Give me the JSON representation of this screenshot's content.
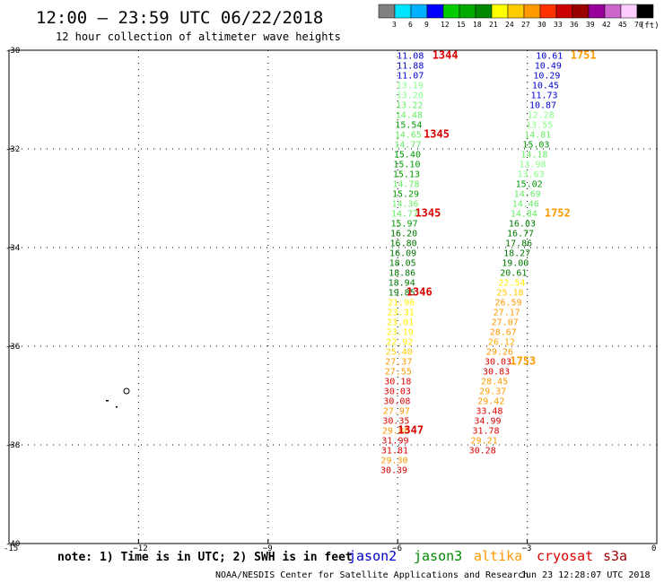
{
  "chart_data": {
    "type": "scatter",
    "title": "12:00 – 23:59 UTC 06/22/2018",
    "subtitle": "12 hour collection of altimeter wave heights",
    "xlim": [
      -15,
      0
    ],
    "ylim": [
      -40,
      -30
    ],
    "x_ticks": [
      -15,
      -12,
      -9,
      -6,
      -3,
      0
    ],
    "x_tick_labels": [
      "-15",
      "−12",
      "−9",
      "−6",
      "−3",
      "0"
    ],
    "y_ticks": [
      -30,
      -32,
      -34,
      -36,
      -38,
      -40
    ],
    "y_tick_labels": [
      "-30",
      "-32",
      "-34",
      "-36",
      "-38",
      "-40"
    ],
    "grid": true,
    "colorbar": {
      "unit": "(ft)",
      "labels": [
        "3",
        "6",
        "9",
        "12",
        "15",
        "18",
        "21",
        "24",
        "27",
        "30",
        "33",
        "36",
        "39",
        "42",
        "45",
        "70"
      ],
      "colors": [
        "#808080",
        "#00e5ff",
        "#00b0ff",
        "#0000ff",
        "#00cc00",
        "#00aa00",
        "#008800",
        "#ffff00",
        "#ffcc00",
        "#ff9900",
        "#ff3300",
        "#cc0000",
        "#990000",
        "#990099",
        "#cc66cc",
        "#ffccff",
        "#000000"
      ]
    },
    "series": [
      {
        "name": "track-1344",
        "points": [
          {
            "x": -6.02,
            "y": -30.1,
            "v": "11.08",
            "c": "#0000cc"
          },
          {
            "x": -6.02,
            "y": -30.3,
            "v": "11.88",
            "c": "#0000cc"
          },
          {
            "x": -6.02,
            "y": -30.5,
            "v": "11.07",
            "c": "#0000cc"
          },
          {
            "x": -6.03,
            "y": -30.7,
            "v": "13.19",
            "c": "#88ff88"
          },
          {
            "x": -6.03,
            "y": -30.9,
            "v": "13.20",
            "c": "#88ff88"
          },
          {
            "x": -6.04,
            "y": -31.1,
            "v": "13.22",
            "c": "#66ee66"
          },
          {
            "x": -6.05,
            "y": -31.3,
            "v": "14.48",
            "c": "#66ee66"
          },
          {
            "x": -6.06,
            "y": -31.5,
            "v": "15.54",
            "c": "#009900"
          },
          {
            "x": -6.07,
            "y": -31.7,
            "v": "14.65",
            "c": "#66ee66"
          },
          {
            "x": -6.08,
            "y": -31.9,
            "v": "14.77",
            "c": "#66ee66"
          },
          {
            "x": -6.09,
            "y": -32.1,
            "v": "15.40",
            "c": "#009900"
          },
          {
            "x": -6.1,
            "y": -32.3,
            "v": "15.10",
            "c": "#009900"
          },
          {
            "x": -6.11,
            "y": -32.5,
            "v": "15.13",
            "c": "#009900"
          },
          {
            "x": -6.12,
            "y": -32.7,
            "v": "14.78",
            "c": "#66ee66"
          },
          {
            "x": -6.13,
            "y": -32.9,
            "v": "15.29",
            "c": "#009900"
          },
          {
            "x": -6.14,
            "y": -33.1,
            "v": "14.36",
            "c": "#66ee66"
          },
          {
            "x": -6.15,
            "y": -33.3,
            "v": "14.77",
            "c": "#66ee66"
          },
          {
            "x": -6.16,
            "y": -33.5,
            "v": "15.97",
            "c": "#009900"
          },
          {
            "x": -6.17,
            "y": -33.7,
            "v": "16.20",
            "c": "#007700"
          },
          {
            "x": -6.18,
            "y": -33.9,
            "v": "16.80",
            "c": "#007700"
          },
          {
            "x": -6.19,
            "y": -34.1,
            "v": "16.09",
            "c": "#007700"
          },
          {
            "x": -6.2,
            "y": -34.3,
            "v": "18.05",
            "c": "#007700"
          },
          {
            "x": -6.21,
            "y": -34.5,
            "v": "18.86",
            "c": "#007700"
          },
          {
            "x": -6.22,
            "y": -34.7,
            "v": "18.94",
            "c": "#007700"
          },
          {
            "x": -6.22,
            "y": -34.9,
            "v": "19.85",
            "c": "#007700"
          },
          {
            "x": -6.23,
            "y": -35.1,
            "v": "21.96",
            "c": "#ffee00"
          },
          {
            "x": -6.24,
            "y": -35.3,
            "v": "23.31",
            "c": "#ffee00"
          },
          {
            "x": -6.25,
            "y": -35.5,
            "v": "23.01",
            "c": "#ffee00"
          },
          {
            "x": -6.26,
            "y": -35.7,
            "v": "23.19",
            "c": "#ffee00"
          },
          {
            "x": -6.27,
            "y": -35.9,
            "v": "22.92",
            "c": "#ffee00"
          },
          {
            "x": -6.28,
            "y": -36.1,
            "v": "25.40",
            "c": "#ffcc00"
          },
          {
            "x": -6.29,
            "y": -36.3,
            "v": "27.37",
            "c": "#ff9900"
          },
          {
            "x": -6.3,
            "y": -36.5,
            "v": "27.55",
            "c": "#ff9900"
          },
          {
            "x": -6.31,
            "y": -36.7,
            "v": "30.18",
            "c": "#dd0000"
          },
          {
            "x": -6.32,
            "y": -36.9,
            "v": "30.03",
            "c": "#dd0000"
          },
          {
            "x": -6.33,
            "y": -37.1,
            "v": "30.08",
            "c": "#dd0000"
          },
          {
            "x": -6.34,
            "y": -37.3,
            "v": "27.97",
            "c": "#ff9900"
          },
          {
            "x": -6.35,
            "y": -37.5,
            "v": "30.35",
            "c": "#dd0000"
          },
          {
            "x": -6.36,
            "y": -37.7,
            "v": "29.88",
            "c": "#ff9900"
          },
          {
            "x": -6.37,
            "y": -37.9,
            "v": "31.99",
            "c": "#dd0000"
          },
          {
            "x": -6.38,
            "y": -38.1,
            "v": "31.81",
            "c": "#dd0000"
          },
          {
            "x": -6.39,
            "y": -38.3,
            "v": "29.30",
            "c": "#ff9900"
          },
          {
            "x": -6.4,
            "y": -38.5,
            "v": "30.39",
            "c": "#dd0000"
          }
        ]
      },
      {
        "name": "track-1751",
        "points": [
          {
            "x": -2.8,
            "y": -30.1,
            "v": "10.61",
            "c": "#0000cc"
          },
          {
            "x": -2.83,
            "y": -30.3,
            "v": "10.49",
            "c": "#0000cc"
          },
          {
            "x": -2.86,
            "y": -30.5,
            "v": "10.29",
            "c": "#0000cc"
          },
          {
            "x": -2.89,
            "y": -30.7,
            "v": "10.45",
            "c": "#0000cc"
          },
          {
            "x": -2.92,
            "y": -30.9,
            "v": "11.73",
            "c": "#0000cc"
          },
          {
            "x": -2.95,
            "y": -31.1,
            "v": "10.87",
            "c": "#0000cc"
          },
          {
            "x": -3.0,
            "y": -31.3,
            "v": "12.28",
            "c": "#88ff88"
          },
          {
            "x": -3.03,
            "y": -31.5,
            "v": "13.55",
            "c": "#88ff88"
          },
          {
            "x": -3.07,
            "y": -31.7,
            "v": "14.81",
            "c": "#66ee66"
          },
          {
            "x": -3.11,
            "y": -31.9,
            "v": "15.03",
            "c": "#009900"
          },
          {
            "x": -3.15,
            "y": -32.1,
            "v": "14.18",
            "c": "#66ee66"
          },
          {
            "x": -3.19,
            "y": -32.3,
            "v": "13.98",
            "c": "#88ff88"
          },
          {
            "x": -3.23,
            "y": -32.5,
            "v": "13.63",
            "c": "#88ff88"
          },
          {
            "x": -3.27,
            "y": -32.7,
            "v": "15.02",
            "c": "#009900"
          },
          {
            "x": -3.31,
            "y": -32.9,
            "v": "14.69",
            "c": "#66ee66"
          },
          {
            "x": -3.35,
            "y": -33.1,
            "v": "14.46",
            "c": "#66ee66"
          },
          {
            "x": -3.39,
            "y": -33.3,
            "v": "14.84",
            "c": "#66ee66"
          },
          {
            "x": -3.43,
            "y": -33.5,
            "v": "16.03",
            "c": "#007700"
          },
          {
            "x": -3.47,
            "y": -33.7,
            "v": "16.77",
            "c": "#007700"
          },
          {
            "x": -3.51,
            "y": -33.9,
            "v": "17.86",
            "c": "#007700"
          },
          {
            "x": -3.55,
            "y": -34.1,
            "v": "18.27",
            "c": "#007700"
          },
          {
            "x": -3.59,
            "y": -34.3,
            "v": "19.00",
            "c": "#007700"
          },
          {
            "x": -3.63,
            "y": -34.5,
            "v": "20.61",
            "c": "#007700"
          },
          {
            "x": -3.67,
            "y": -34.7,
            "v": "22.54",
            "c": "#ffee00"
          },
          {
            "x": -3.71,
            "y": -34.9,
            "v": "25.18",
            "c": "#ffcc00"
          },
          {
            "x": -3.75,
            "y": -35.1,
            "v": "26.59",
            "c": "#ff9900"
          },
          {
            "x": -3.79,
            "y": -35.3,
            "v": "27.17",
            "c": "#ff9900"
          },
          {
            "x": -3.83,
            "y": -35.5,
            "v": "27.07",
            "c": "#ff9900"
          },
          {
            "x": -3.87,
            "y": -35.7,
            "v": "28.67",
            "c": "#ff9900"
          },
          {
            "x": -3.91,
            "y": -35.9,
            "v": "26.12",
            "c": "#ffaa00"
          },
          {
            "x": -3.95,
            "y": -36.1,
            "v": "29.26",
            "c": "#ff9900"
          },
          {
            "x": -3.99,
            "y": -36.3,
            "v": "30.03",
            "c": "#dd0000"
          },
          {
            "x": -4.03,
            "y": -36.5,
            "v": "30.83",
            "c": "#dd0000"
          },
          {
            "x": -4.07,
            "y": -36.7,
            "v": "28.45",
            "c": "#ff9900"
          },
          {
            "x": -4.11,
            "y": -36.9,
            "v": "29.37",
            "c": "#ff9900"
          },
          {
            "x": -4.15,
            "y": -37.1,
            "v": "29.42",
            "c": "#ff9900"
          },
          {
            "x": -4.19,
            "y": -37.3,
            "v": "33.48",
            "c": "#dd0000"
          },
          {
            "x": -4.23,
            "y": -37.5,
            "v": "34.99",
            "c": "#dd0000"
          },
          {
            "x": -4.27,
            "y": -37.7,
            "v": "31.78",
            "c": "#dd0000"
          },
          {
            "x": -4.31,
            "y": -37.9,
            "v": "29.21",
            "c": "#ff9900"
          },
          {
            "x": -4.35,
            "y": -38.1,
            "v": "30.28",
            "c": "#dd0000"
          }
        ]
      }
    ],
    "time_labels": [
      {
        "text": "1344",
        "x": -5.2,
        "y": -30.1,
        "c": "#dd0000"
      },
      {
        "text": "1345",
        "x": -5.4,
        "y": -31.7,
        "c": "#dd0000"
      },
      {
        "text": "1345",
        "x": -5.6,
        "y": -33.3,
        "c": "#dd0000"
      },
      {
        "text": "1346",
        "x": -5.8,
        "y": -34.9,
        "c": "#dd0000"
      },
      {
        "text": "1347",
        "x": -6.0,
        "y": -37.7,
        "c": "#dd0000"
      },
      {
        "text": "1751",
        "x": -2.0,
        "y": -30.1,
        "c": "#ff9900"
      },
      {
        "text": "1752",
        "x": -2.6,
        "y": -33.3,
        "c": "#ff9900"
      },
      {
        "text": "1753",
        "x": -3.4,
        "y": -36.3,
        "c": "#ff9900"
      }
    ],
    "legend": [
      {
        "name": "jason2",
        "color": "#0000cc"
      },
      {
        "name": "jason3",
        "color": "#008800"
      },
      {
        "name": "altika",
        "color": "#ff9900"
      },
      {
        "name": "cryosat",
        "color": "#dd0000"
      },
      {
        "name": "s3a",
        "color": "#990000"
      }
    ]
  },
  "note": "note: 1) Time is in UTC; 2) SWH is in feet",
  "footer_left": "NOAA/NESDIS Center for Satellite Applications and Research",
  "footer_right": "Jun 23 12:28:07 UTC 2018"
}
